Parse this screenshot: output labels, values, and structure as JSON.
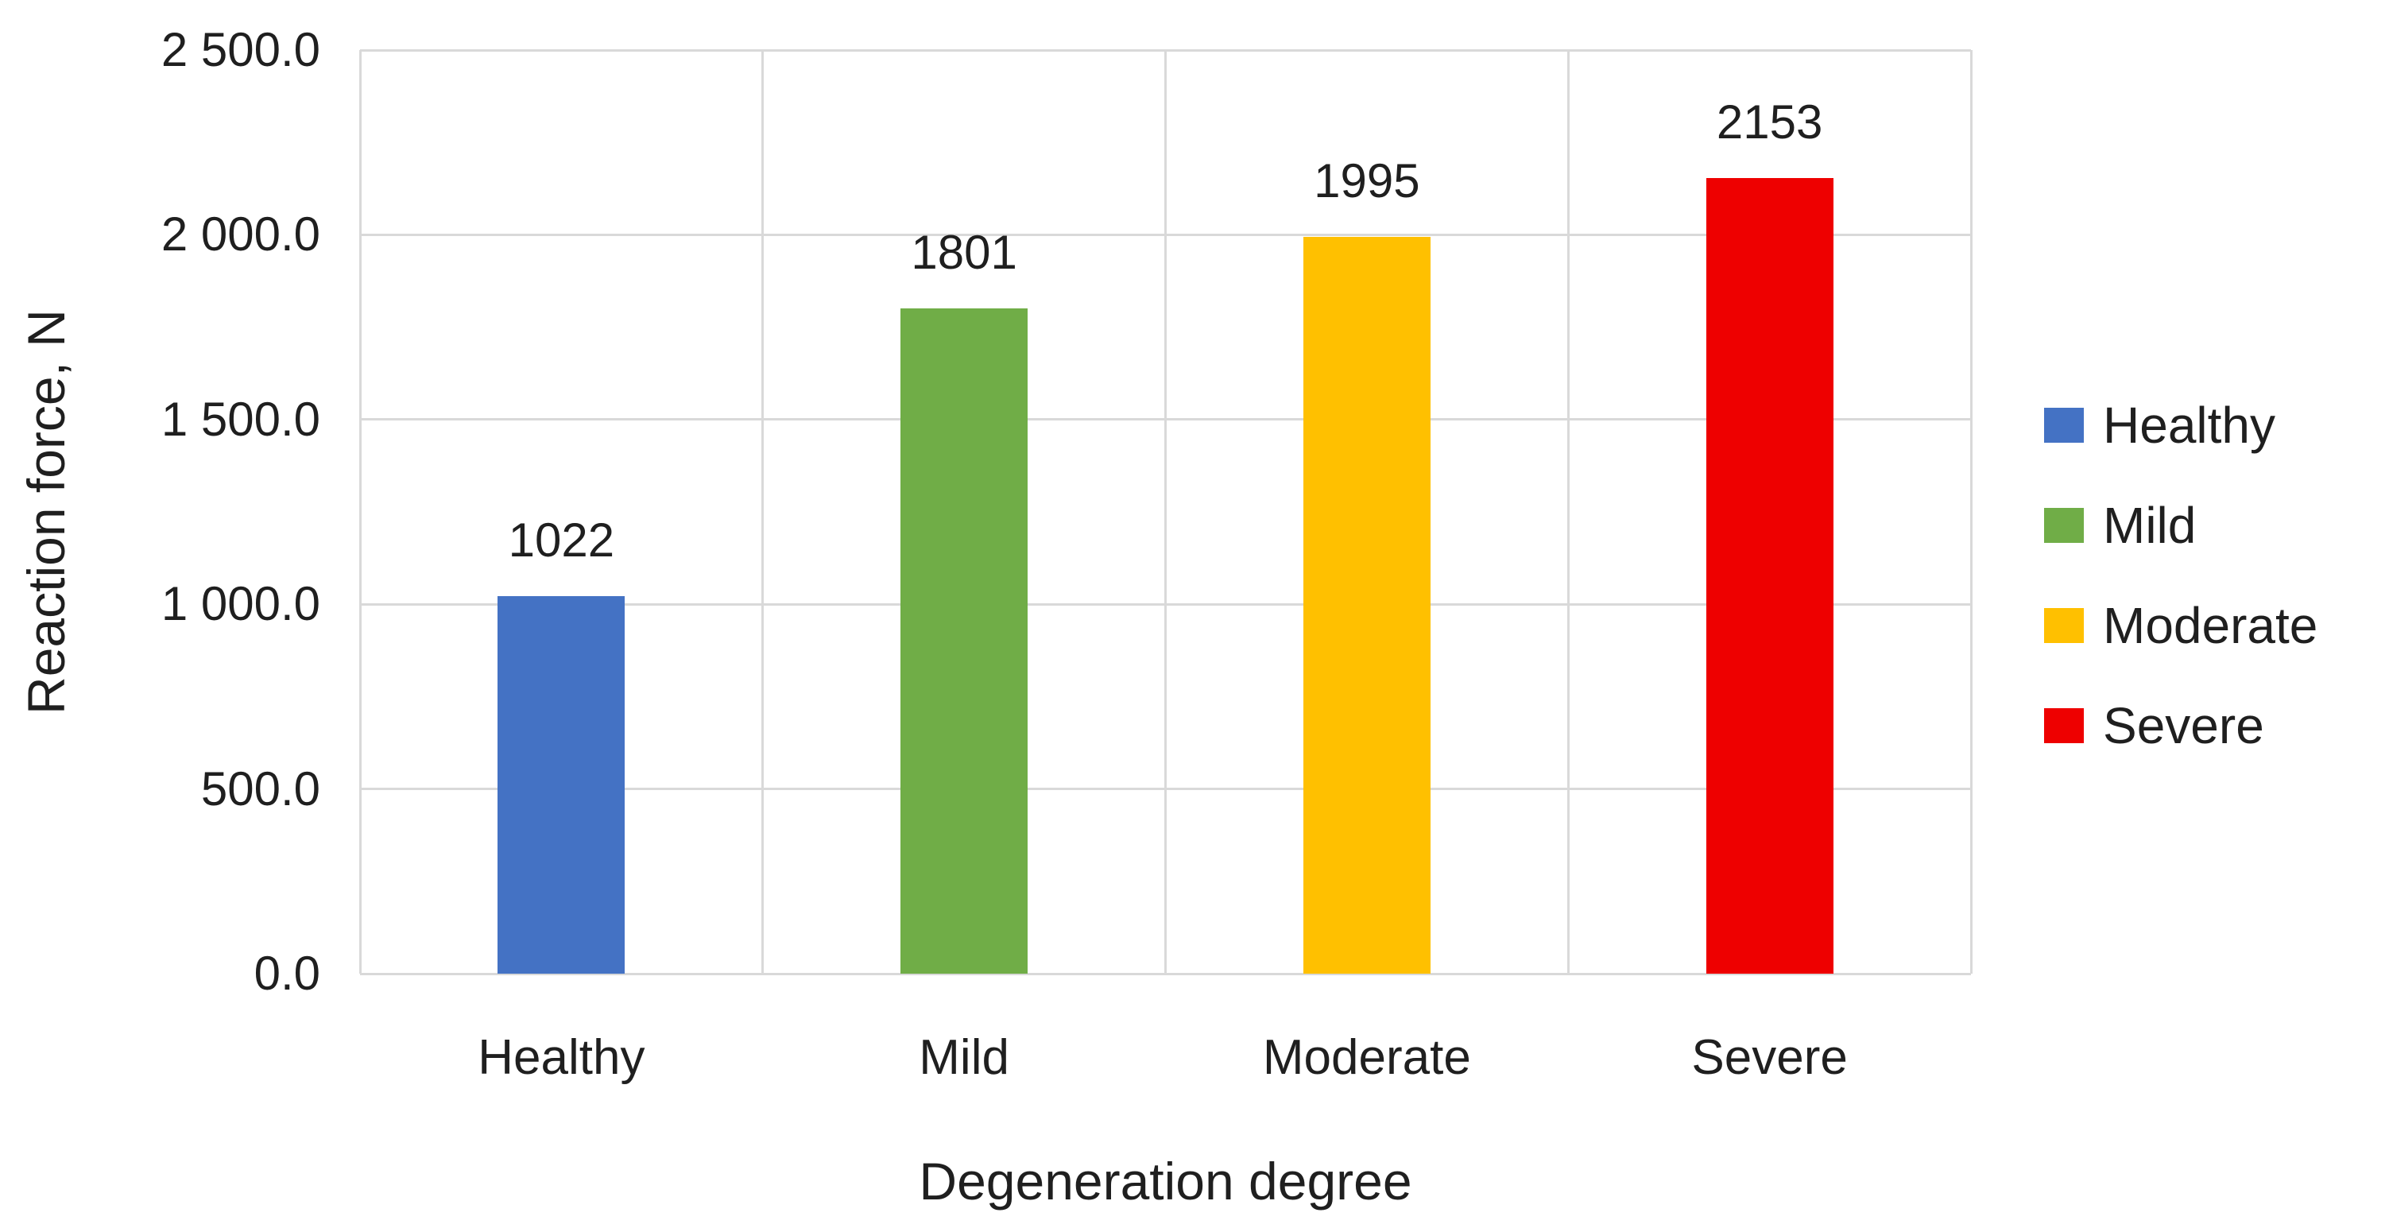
{
  "chart_data": {
    "type": "bar",
    "title": "",
    "categories": [
      "Healthy",
      "Mild",
      "Moderate",
      "Severe"
    ],
    "values": [
      1022,
      1801,
      1995,
      2153
    ],
    "bar_labels": [
      "1022",
      "1801",
      "1995",
      "2153"
    ],
    "series": [
      {
        "name": "Healthy",
        "value": 1022,
        "color": "#4472C4"
      },
      {
        "name": "Mild",
        "value": 1801,
        "color": "#70AD47"
      },
      {
        "name": "Moderate",
        "value": 1995,
        "color": "#FFC000"
      },
      {
        "name": "Severe",
        "value": 2153,
        "color": "#EE0000"
      }
    ],
    "xlabel": "Degeneration degree",
    "ylabel": "Reaction force, N",
    "ylim": [
      0,
      2500
    ],
    "ytick_interval": 500,
    "ytick_labels": [
      "0.0",
      "500.0",
      "1 000.0",
      "1 500.0",
      "2 000.0",
      "2 500.0"
    ],
    "grid": true,
    "legend": {
      "position": "right",
      "entries": [
        {
          "label": "Healthy",
          "color": "#4472C4"
        },
        {
          "label": "Mild",
          "color": "#70AD47"
        },
        {
          "label": "Moderate",
          "color": "#FFC000"
        },
        {
          "label": "Severe",
          "color": "#EE0000"
        }
      ]
    }
  },
  "colors": {
    "background": "#FFFFFF",
    "gridline": "#D9D9D9",
    "text": "#1F1F1F"
  }
}
